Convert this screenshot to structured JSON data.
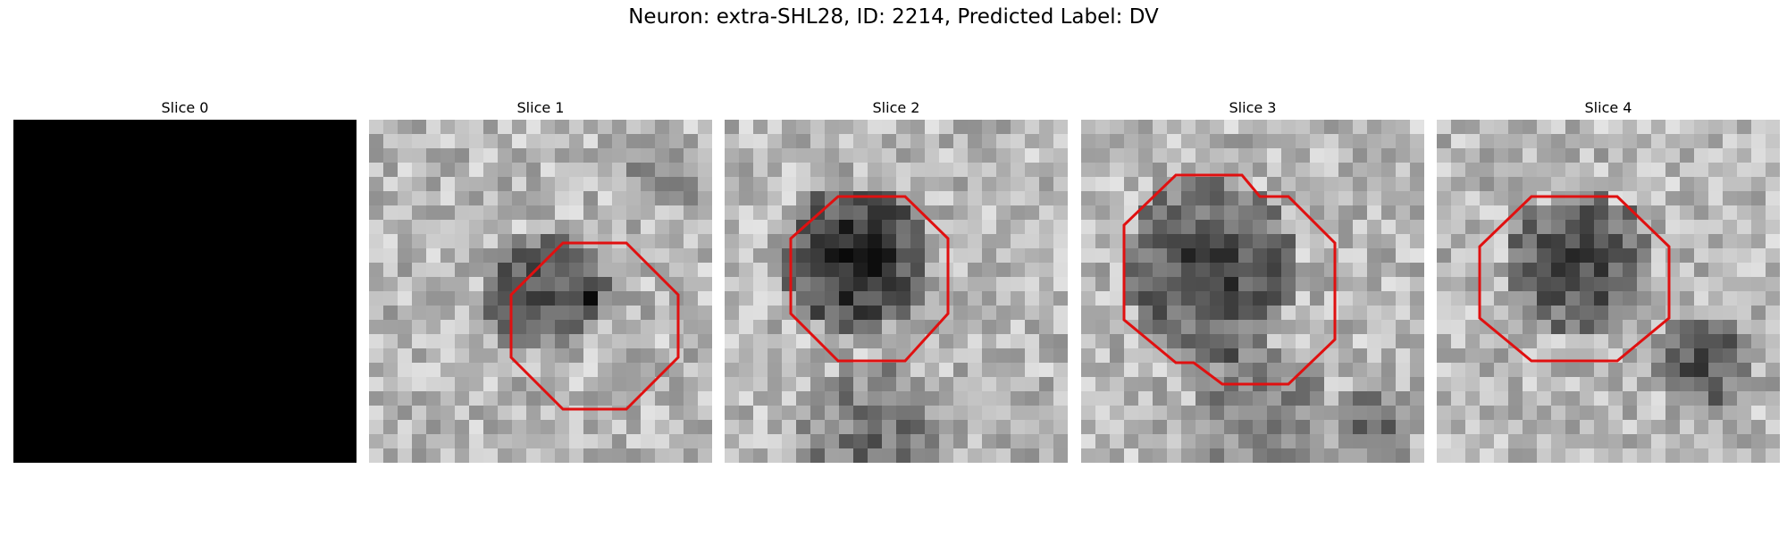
{
  "figure": {
    "title": "Neuron: extra-SHL28, ID: 2214, Predicted Label: DV"
  },
  "panels": [
    {
      "title": "Slice 0",
      "blank": true
    },
    {
      "title": "Slice 1",
      "blank": false
    },
    {
      "title": "Slice 2",
      "blank": false
    },
    {
      "title": "Slice 3",
      "blank": false
    },
    {
      "title": "Slice 4",
      "blank": false
    }
  ],
  "colors": {
    "contour": "#e01010",
    "background": "#ffffff"
  }
}
